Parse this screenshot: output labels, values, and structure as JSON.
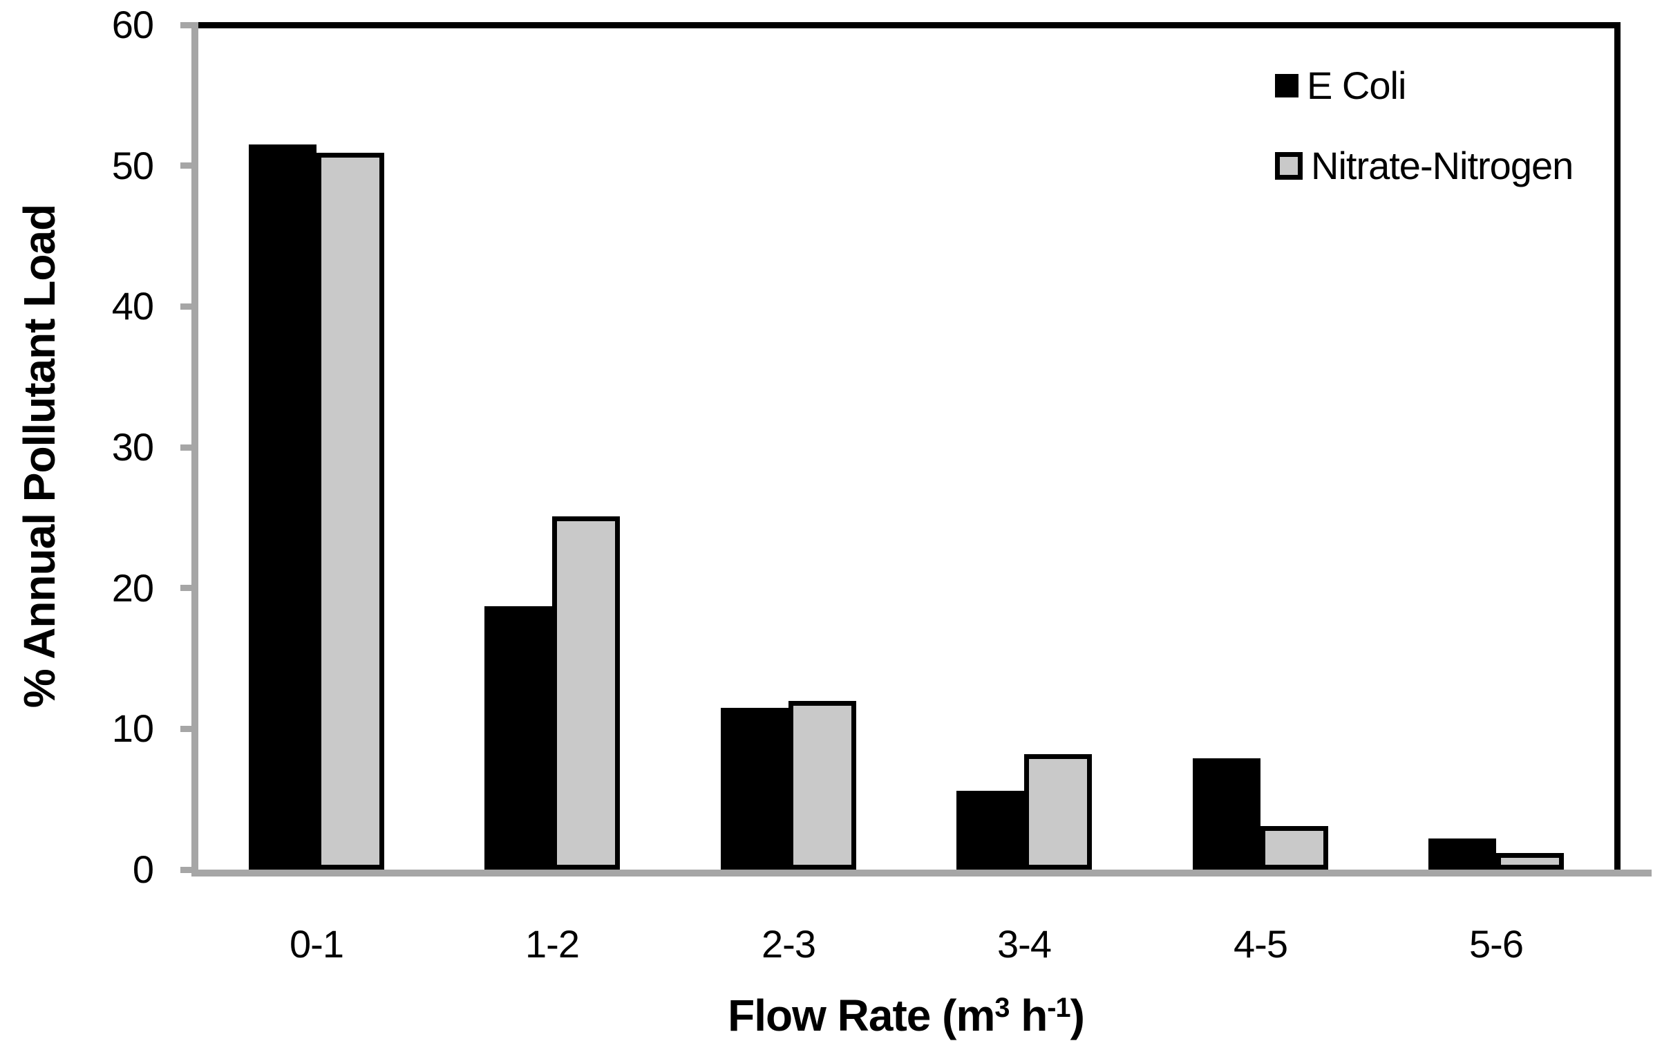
{
  "chart_data": {
    "type": "bar",
    "title": "",
    "categories": [
      "0-1",
      "1-2",
      "2-3",
      "3-4",
      "4-5",
      "5-6"
    ],
    "series": [
      {
        "name": "E Coli",
        "color": "#000000",
        "values": [
          51.5,
          18.7,
          11.5,
          5.6,
          7.9,
          2.2
        ]
      },
      {
        "name": "Nitrate-Nitrogen",
        "color": "#C9C9C9",
        "values": [
          50.9,
          25.1,
          12.0,
          8.2,
          3.1,
          1.2
        ]
      }
    ],
    "xlabel": "Flow Rate (m3 h-1)",
    "xlabel_rich": {
      "prefix": "Flow Rate (m",
      "sup1": "3",
      "mid": " h",
      "sup2": "-1",
      "suffix": ")"
    },
    "ylabel": "% Annual Pollutant Load",
    "ylim": [
      0,
      60
    ],
    "ytick_values": [
      0,
      10,
      20,
      30,
      40,
      50,
      60
    ],
    "ytick_labels": [
      "0",
      "10",
      "20",
      "30",
      "40",
      "50",
      "60"
    ],
    "legend_position": "top-right",
    "grid": false,
    "bar_outline_color": "#000000",
    "axis_color": "#A6A6A6",
    "frame_color": "#000000",
    "background": "#FFFFFF"
  }
}
